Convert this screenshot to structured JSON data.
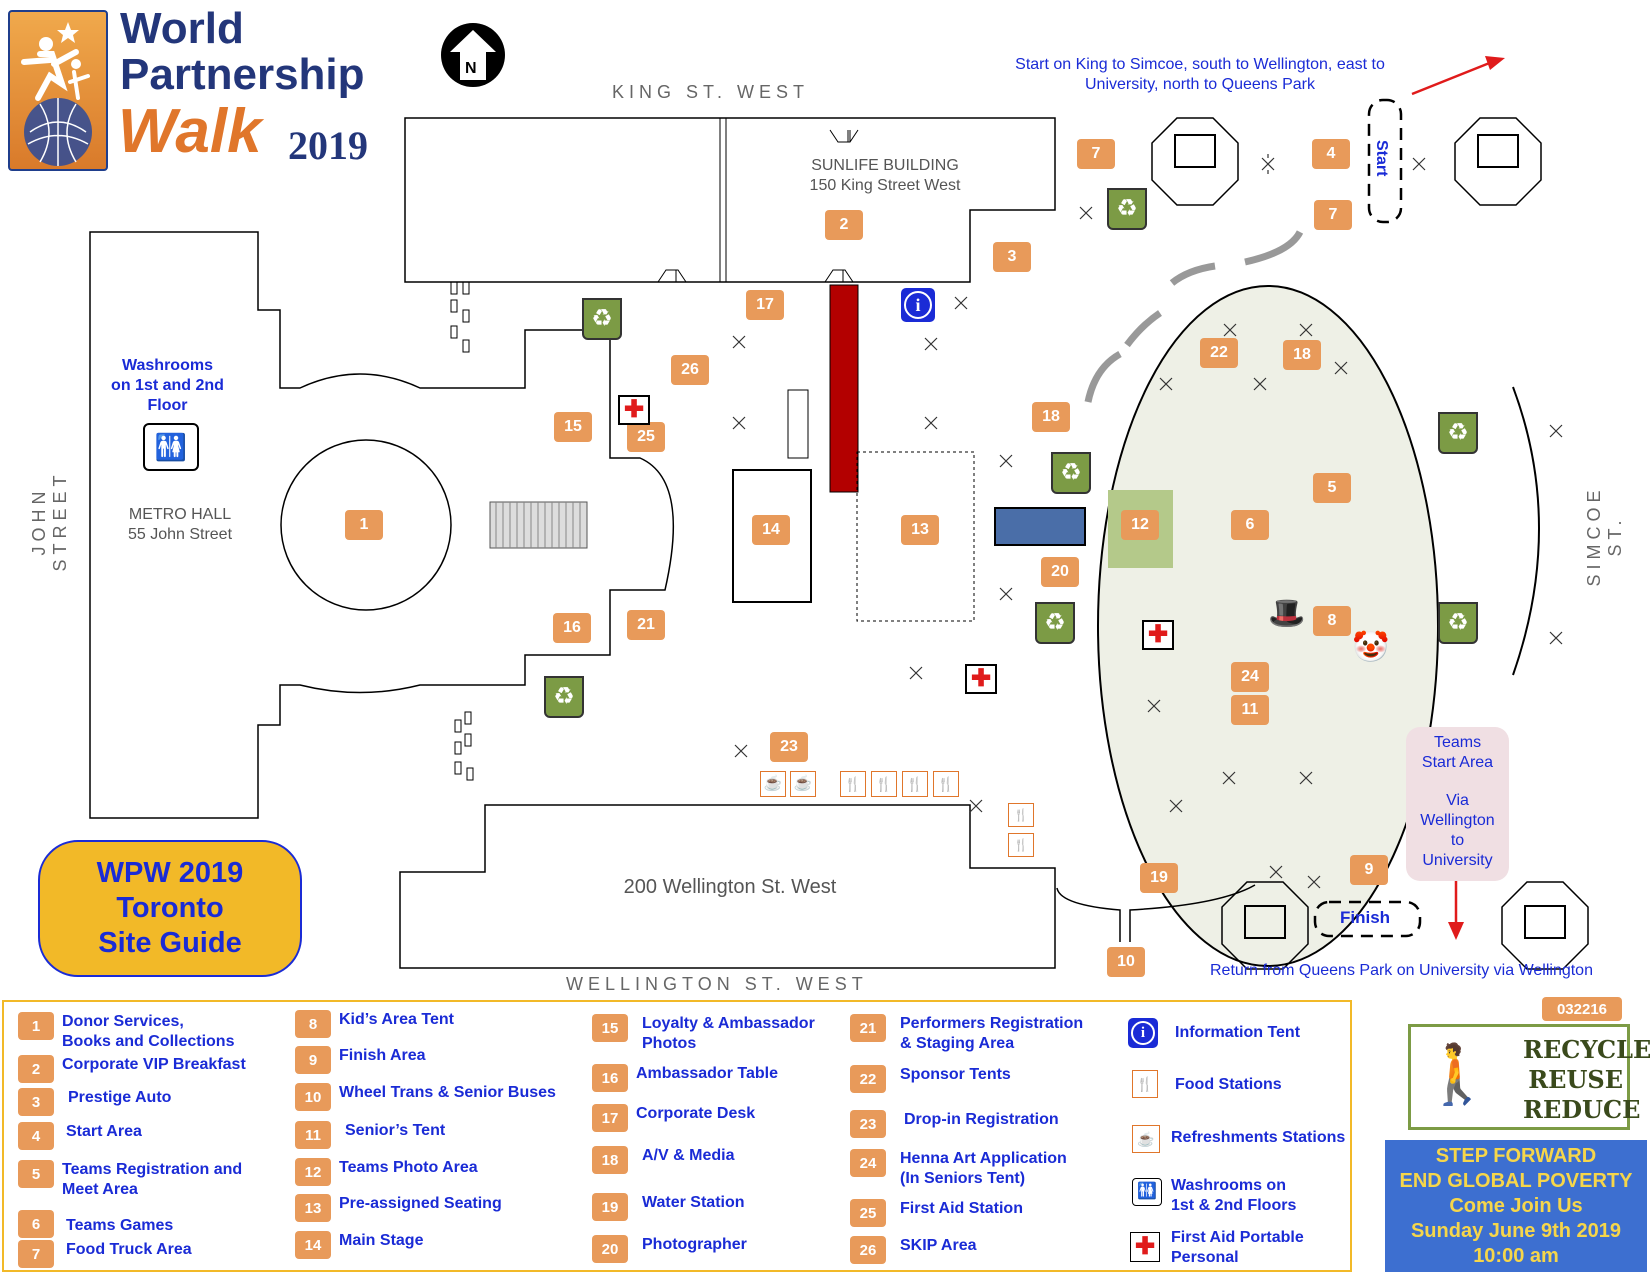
{
  "logo": {
    "line1": "World",
    "line2": "Partnership",
    "line3": "Walk",
    "year": "2019"
  },
  "north_label": "N",
  "streets": {
    "king": "KING ST. WEST",
    "wellington": "WELLINGTON ST. WEST",
    "john": "JOHN STREET",
    "simcoe": "SIMCOE ST."
  },
  "buildings": {
    "sunlife_name": "SUNLIFE  BUILDING",
    "sunlife_addr": "150 King Street West",
    "metro_name": "METRO HALL",
    "metro_addr": "55 John Street",
    "wellington_addr": "200 Wellington St. West"
  },
  "route_text": {
    "start_route_line1": "Start on King to Simcoe, south to Wellington, east to",
    "start_route_line2": "University, north to Queens Park",
    "return_route": "Return from Queens Park on University via Wellington",
    "start_label": "Start",
    "finish_label": "Finish"
  },
  "washroom_note": {
    "line1": "Washrooms",
    "line2": "on 1st and 2nd",
    "line3": "Floor"
  },
  "teams_box": {
    "line1": "Teams",
    "line2": "Start Area",
    "line3": "Via",
    "line4": "Wellington",
    "line5": "to",
    "line6": "University"
  },
  "site_guide": {
    "line1": "WPW 2019",
    "line2": "Toronto",
    "line3": "Site Guide"
  },
  "map_badges": [
    "1",
    "2",
    "3",
    "4",
    "5",
    "6",
    "7",
    "7",
    "8",
    "9",
    "10",
    "11",
    "12",
    "13",
    "14",
    "15",
    "16",
    "17",
    "18",
    "18",
    "19",
    "20",
    "21",
    "22",
    "23",
    "24",
    "25",
    "26"
  ],
  "legend": {
    "col1": [
      {
        "num": "1",
        "label": "Donor Services,\nBooks and Collections"
      },
      {
        "num": "2",
        "label": "Corporate VIP Breakfast"
      },
      {
        "num": "3",
        "label": "Prestige Auto"
      },
      {
        "num": "4",
        "label": "Start Area"
      },
      {
        "num": "5",
        "label": "Teams Registration and\nMeet Area"
      },
      {
        "num": "6",
        "label": "Teams Games"
      },
      {
        "num": "7",
        "label": "Food Truck Area"
      }
    ],
    "col2": [
      {
        "num": "8",
        "label": "Kid’s Area Tent"
      },
      {
        "num": "9",
        "label": "Finish Area"
      },
      {
        "num": "10",
        "label": "Wheel Trans & Senior Buses"
      },
      {
        "num": "11",
        "label": "Senior’s Tent"
      },
      {
        "num": "12",
        "label": "Teams Photo Area"
      },
      {
        "num": "13",
        "label": "Pre-assigned Seating"
      },
      {
        "num": "14",
        "label": "Main Stage"
      }
    ],
    "col3": [
      {
        "num": "15",
        "label": "Loyalty & Ambassador\nPhotos"
      },
      {
        "num": "16",
        "label": "Ambassador Table"
      },
      {
        "num": "17",
        "label": "Corporate Desk"
      },
      {
        "num": "18",
        "label": "A/V & Media"
      },
      {
        "num": "19",
        "label": "Water Station"
      },
      {
        "num": "20",
        "label": "Photographer"
      }
    ],
    "col4": [
      {
        "num": "21",
        "label": "Performers Registration\n& Staging Area"
      },
      {
        "num": "22",
        "label": "Sponsor Tents"
      },
      {
        "num": "23",
        "label": "Drop-in Registration"
      },
      {
        "num": "24",
        "label": "Henna Art Application\n(In Seniors Tent)"
      },
      {
        "num": "25",
        "label": "First Aid Station"
      },
      {
        "num": "26",
        "label": "SKIP Area"
      }
    ],
    "icons": [
      {
        "icon": "information-icon",
        "label": "Information Tent"
      },
      {
        "icon": "food-station-icon",
        "label": "Food Stations"
      },
      {
        "icon": "refreshment-icon",
        "label": "Refreshments Stations"
      },
      {
        "icon": "washroom-icon",
        "label": "Washrooms on\n1st & 2nd Floors"
      },
      {
        "icon": "first-aid-icon",
        "label": "First Aid Portable\nPersonal"
      }
    ]
  },
  "code": "032216",
  "recycle": {
    "line1": "RECYCLE",
    "line2": "REUSE",
    "line3": "REDUCE"
  },
  "step_forward": {
    "line1": "STEP FORWARD",
    "line2": "END GLOBAL POVERTY",
    "line3": "Come Join Us",
    "line4": "Sunday June 9th 2019",
    "line5": "10:00 am"
  },
  "colors": {
    "badge": "#e89a5a",
    "legend_text": "#1a2bd6",
    "site_guide_bg": "#f2b928",
    "step_forward_bg": "#3d6fd0",
    "step_forward_text": "#f6d64a",
    "ellipse_fill": "#eef0e6",
    "first_aid": "#e01b1b"
  }
}
